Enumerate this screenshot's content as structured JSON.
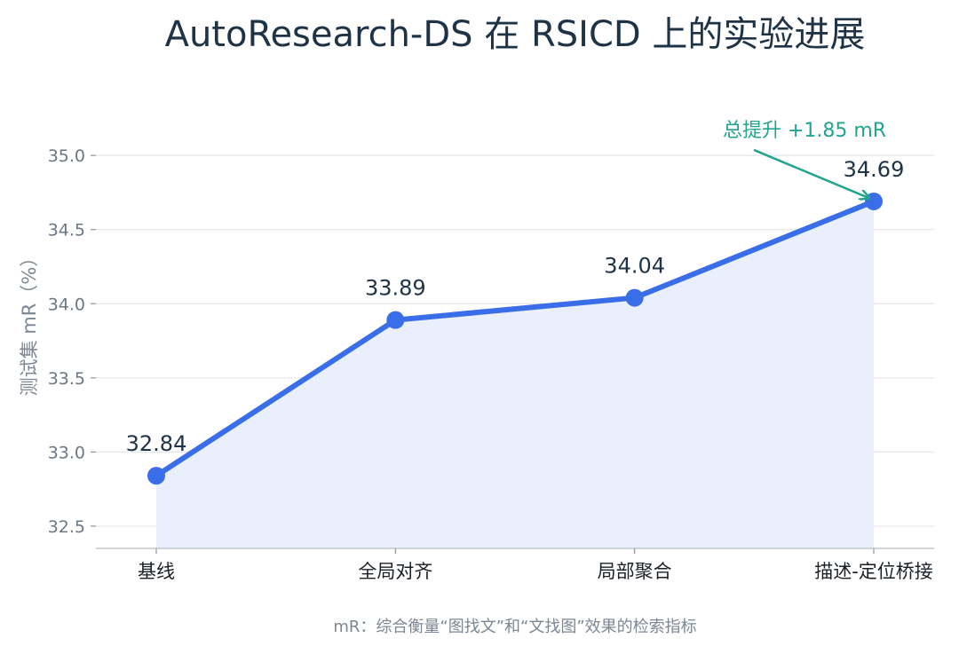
{
  "chart_data": {
    "type": "line",
    "title": "AutoResearch-DS 在 RSICD 上的实验进展",
    "xlabel": "",
    "ylabel": "测试集 mR（%）",
    "categories": [
      "基线",
      "全局对齐",
      "局部聚合",
      "描述-定位桥接"
    ],
    "series": [
      {
        "values": [
          32.84,
          33.89,
          34.04,
          34.69
        ]
      }
    ],
    "data_labels": [
      "32.84",
      "33.89",
      "34.04",
      "34.69"
    ],
    "yticks": [
      "32.5",
      "33.0",
      "33.5",
      "34.0",
      "34.5",
      "35.0"
    ],
    "ylim": [
      32.35,
      35.3
    ],
    "grid": true,
    "area_fill": true,
    "annotation": {
      "text": "总提升 +1.85 mR",
      "target_index": 3
    },
    "footnote": "mR：综合衡量“图找文”和“文找图”效果的检索指标",
    "colors": {
      "line": "#3a6ee8",
      "fill": "#e9effc",
      "annotation": "#22a48f",
      "grid": "#e3e6ea",
      "title": "#1f3347"
    }
  }
}
